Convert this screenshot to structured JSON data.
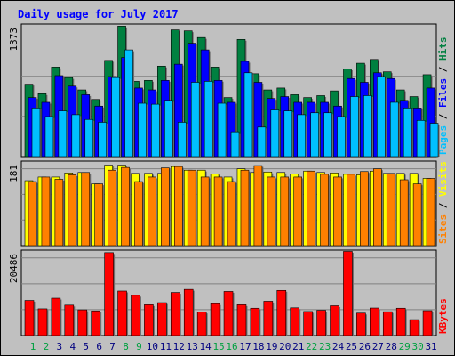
{
  "title": "Daily usage for July 2017",
  "colors": {
    "background": "#c0c0c0",
    "plot_bg": "#c0c0c0",
    "title": "#0000ff",
    "hits": "#008040",
    "files": "#0000ff",
    "pages": "#00c0ff",
    "visits": "#ffff00",
    "sites": "#ff8000",
    "kbytes": "#ff0000",
    "weekend_label": "#00a040",
    "weekday_label": "#000080",
    "grid": "#808080"
  },
  "chart_data": [
    {
      "type": "bar",
      "name": "hits-files-pages",
      "ymax_label": "1373",
      "legend": [
        "Pages",
        "Files",
        "Hits"
      ],
      "categories": [
        "1",
        "2",
        "3",
        "4",
        "5",
        "6",
        "7",
        "8",
        "9",
        "10",
        "11",
        "12",
        "13",
        "14",
        "15",
        "16",
        "17",
        "18",
        "19",
        "20",
        "21",
        "22",
        "23",
        "24",
        "25",
        "26",
        "27",
        "28",
        "29",
        "30",
        "31"
      ],
      "ylim": [
        0,
        1373
      ],
      "series": [
        {
          "name": "Hits",
          "values": [
            760,
            660,
            940,
            830,
            700,
            600,
            1010,
            1370,
            790,
            800,
            950,
            1330,
            1320,
            1250,
            940,
            620,
            1230,
            870,
            700,
            720,
            650,
            620,
            640,
            690,
            920,
            980,
            1020,
            890,
            700,
            630,
            860
          ]
        },
        {
          "name": "Files",
          "values": [
            620,
            570,
            850,
            740,
            650,
            530,
            840,
            1040,
            720,
            700,
            800,
            970,
            1190,
            1120,
            800,
            570,
            1000,
            780,
            610,
            630,
            570,
            570,
            570,
            530,
            820,
            780,
            880,
            820,
            590,
            510,
            720
          ]
        },
        {
          "name": "Pages",
          "values": [
            510,
            420,
            480,
            440,
            390,
            360,
            830,
            1120,
            560,
            550,
            590,
            360,
            780,
            790,
            560,
            260,
            880,
            310,
            490,
            480,
            440,
            460,
            460,
            420,
            630,
            640,
            840,
            570,
            510,
            380,
            350
          ]
        }
      ]
    },
    {
      "type": "bar",
      "name": "visits-sites",
      "ymax_label": "181",
      "legend": [
        "Sites",
        "Visits"
      ],
      "categories": [
        "1",
        "2",
        "3",
        "4",
        "5",
        "6",
        "7",
        "8",
        "9",
        "10",
        "11",
        "12",
        "13",
        "14",
        "15",
        "16",
        "17",
        "18",
        "19",
        "20",
        "21",
        "22",
        "23",
        "24",
        "25",
        "26",
        "27",
        "28",
        "29",
        "30",
        "31"
      ],
      "ylim": [
        0,
        181
      ],
      "series": [
        {
          "name": "Visits",
          "values": [
            142,
            150,
            150,
            159,
            160,
            135,
            176,
            176,
            158,
            158,
            158,
            173,
            165,
            165,
            157,
            150,
            168,
            160,
            161,
            160,
            157,
            163,
            160,
            159,
            156,
            155,
            163,
            158,
            158,
            158,
            147
          ]
        },
        {
          "name": "Sites",
          "values": [
            140,
            150,
            145,
            155,
            160,
            135,
            165,
            171,
            140,
            150,
            170,
            173,
            165,
            150,
            150,
            140,
            165,
            175,
            150,
            150,
            150,
            163,
            156,
            150,
            156,
            162,
            168,
            158,
            144,
            135,
            147
          ]
        }
      ]
    },
    {
      "type": "bar",
      "name": "kbytes",
      "ymax_label": "20486",
      "legend": [
        "KBytes"
      ],
      "categories": [
        "1",
        "2",
        "3",
        "4",
        "5",
        "6",
        "7",
        "8",
        "9",
        "10",
        "11",
        "12",
        "13",
        "14",
        "15",
        "16",
        "17",
        "18",
        "19",
        "20",
        "21",
        "22",
        "23",
        "24",
        "25",
        "26",
        "27",
        "28",
        "29",
        "30",
        "31"
      ],
      "ylim": [
        0,
        20486
      ],
      "series": [
        {
          "name": "KBytes",
          "values": [
            8600,
            6550,
            9150,
            7450,
            6300,
            6050,
            20300,
            10900,
            9850,
            7550,
            8050,
            10550,
            11300,
            5750,
            7800,
            10800,
            7550,
            6700,
            8400,
            11050,
            6800,
            5900,
            6200,
            7300,
            20600,
            5500,
            6750,
            5850,
            6700,
            3900,
            6100
          ]
        }
      ]
    }
  ],
  "weekend_days": [
    "1",
    "2",
    "8",
    "9",
    "15",
    "16",
    "22",
    "23",
    "29",
    "30"
  ]
}
